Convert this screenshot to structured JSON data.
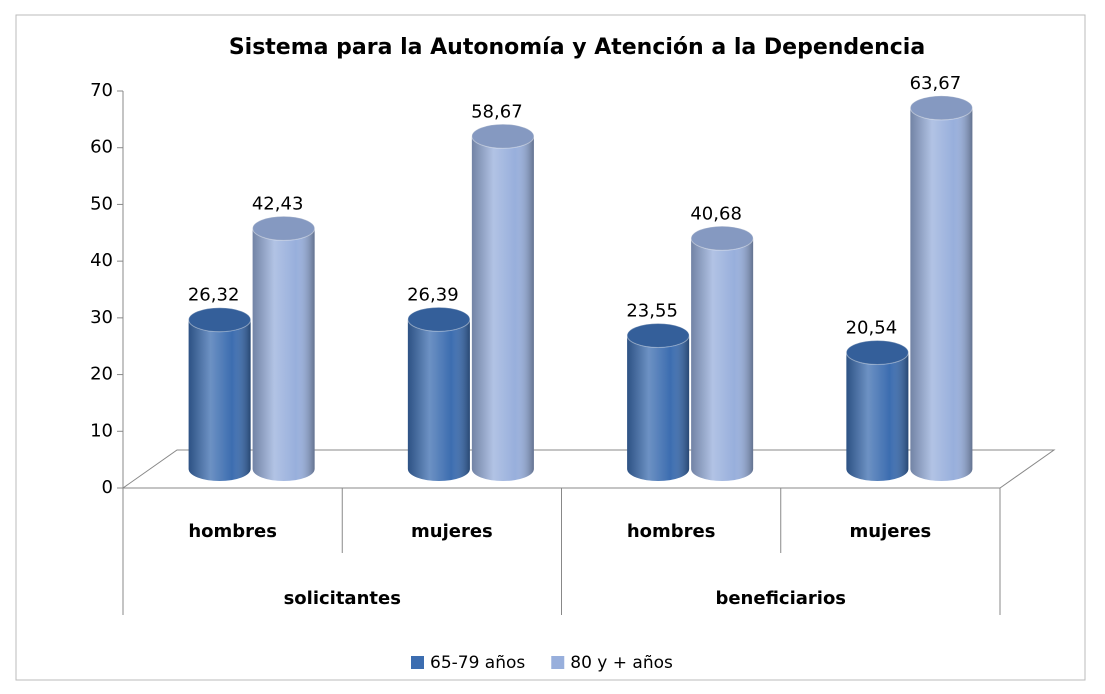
{
  "chart_data": {
    "type": "bar3d",
    "title": "Sistema para la Autonomía y Atención a la Dependencia",
    "categories": [
      "hombres",
      "mujeres",
      "hombres",
      "mujeres"
    ],
    "groups": [
      "solicitantes",
      "beneficiarios"
    ],
    "series": [
      {
        "name": "65-79 años",
        "color": "#3c6db0",
        "values": [
          26.32,
          26.39,
          23.55,
          20.54
        ],
        "value_labels": [
          "26,32",
          "26,39",
          "23,55",
          "20,54"
        ]
      },
      {
        "name": "80 y + años",
        "color": "#98afdc",
        "values": [
          42.43,
          58.67,
          40.68,
          63.67
        ],
        "value_labels": [
          "42,43",
          "58,67",
          "40,68",
          "63,67"
        ]
      }
    ],
    "ylim": [
      0,
      70
    ],
    "yticks": [
      0,
      10,
      20,
      30,
      40,
      50,
      60,
      70
    ],
    "grid": false,
    "legend": "bottom"
  }
}
